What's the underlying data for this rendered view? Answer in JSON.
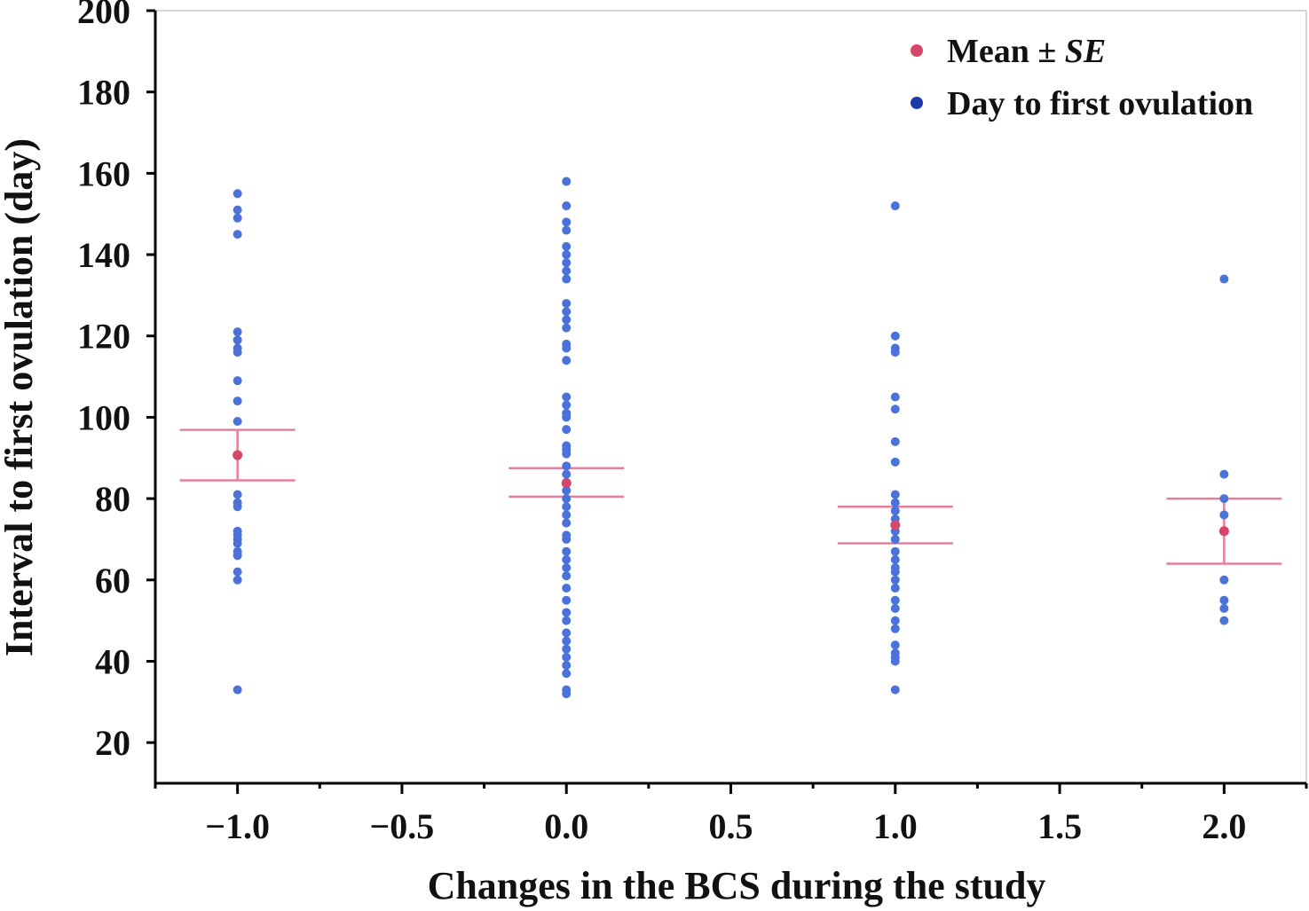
{
  "chart_data": {
    "type": "scatter",
    "title": "",
    "xlabel": "Changes in the BCS during the study",
    "ylabel": "Interval to first ovulation (day)",
    "xlim": [
      -1.25,
      2.25
    ],
    "ylim": [
      10,
      200
    ],
    "x_ticks": [
      "-1.0",
      "-0.5",
      "0.0",
      "0.5",
      "1.0",
      "1.5",
      "2.0"
    ],
    "x_tick_values": [
      -1.0,
      -0.5,
      0.0,
      0.5,
      1.0,
      1.5,
      2.0
    ],
    "y_ticks": [
      "20",
      "40",
      "60",
      "80",
      "100",
      "120",
      "140",
      "160",
      "180",
      "200"
    ],
    "y_tick_values": [
      20,
      40,
      60,
      80,
      100,
      120,
      140,
      160,
      180,
      200
    ],
    "grid": false,
    "legend": {
      "position": "top-right",
      "mean_label_prefix": "Mean ± ",
      "mean_label_italic": "SE",
      "points_label": "Day to first ovulation"
    },
    "colors": {
      "points": "#4a72d9",
      "mean": "#d6456a",
      "error_bars": "#e57f9c",
      "legend_points": "#1c3aa8"
    },
    "series": [
      {
        "x": -1.0,
        "values": [
          155,
          151,
          149,
          145,
          121,
          119,
          117,
          116,
          109,
          104,
          99,
          81,
          79,
          78,
          72,
          71,
          70,
          69,
          67,
          66,
          62,
          60,
          33
        ]
      },
      {
        "x": 0.0,
        "values": [
          158,
          152,
          148,
          146,
          142,
          140,
          138,
          136,
          134,
          128,
          126,
          124,
          122,
          118,
          117,
          114,
          105,
          103,
          101,
          100,
          97,
          93,
          92,
          91,
          88,
          86,
          84,
          82,
          80,
          78,
          76,
          74,
          71,
          70,
          67,
          65,
          63,
          61,
          58,
          55,
          52,
          50,
          47,
          45,
          43,
          41,
          39,
          37,
          33,
          32
        ]
      },
      {
        "x": 1.0,
        "values": [
          152,
          120,
          117,
          116,
          105,
          102,
          94,
          89,
          81,
          79,
          77,
          75,
          72,
          70,
          67,
          65,
          63,
          62,
          60,
          58,
          55,
          53,
          50,
          48,
          44,
          42,
          41,
          40,
          33
        ]
      },
      {
        "x": 2.0,
        "values": [
          134,
          86,
          80,
          76,
          72,
          60,
          55,
          53,
          50
        ]
      }
    ],
    "means": [
      {
        "x": -1.0,
        "mean": 90.7,
        "upper": 96.9,
        "lower": 84.5
      },
      {
        "x": 0.0,
        "mean": 83.8,
        "upper": 87.5,
        "lower": 80.5
      },
      {
        "x": 1.0,
        "mean": 73.5,
        "upper": 78.0,
        "lower": 69.0
      },
      {
        "x": 2.0,
        "mean": 72.0,
        "upper": 80.0,
        "lower": 64.0
      }
    ]
  }
}
